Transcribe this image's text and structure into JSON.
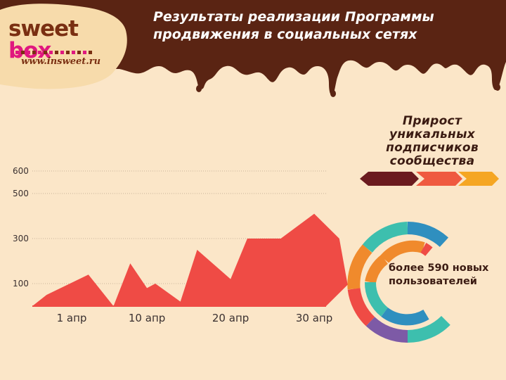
{
  "header": {
    "title": "Результаты реализации Программы продвижения в социальных сетях"
  },
  "logo": {
    "word1": "sweet",
    "word2": "box",
    "url": "www.insweet.ru"
  },
  "sidebar": {
    "title": "Прирост уникальных подписчиков сообщества",
    "ring_text": "более 590 новых пользователей"
  },
  "colors": {
    "chocolate": "#5a2413",
    "background": "#fbe6c8",
    "area": "#ef4b45",
    "arrow_dark": "#6b1b1f",
    "arrow_mid": "#ef5a40",
    "arrow_light": "#f5a623",
    "ring_teal": "#3dbfae",
    "ring_blue": "#2f8fbf",
    "ring_orange": "#f08a2c",
    "ring_red": "#ef4b45",
    "ring_purple": "#7d5aa6",
    "logo_pink": "#e0187f"
  },
  "chart_data": {
    "type": "area",
    "title": "",
    "xlabel": "",
    "ylabel": "",
    "yticks": [
      {
        "label": "600",
        "value": 600
      },
      {
        "label": "500",
        "value": 500
      },
      {
        "label": "300",
        "value": 300
      },
      {
        "label": "100",
        "value": 100
      }
    ],
    "xticks": [
      {
        "label": "1 апр",
        "value": 1
      },
      {
        "label": "10 апр",
        "value": 10
      },
      {
        "label": "20 апр",
        "value": 20
      },
      {
        "label": "30 апр",
        "value": 30
      }
    ],
    "series": [
      {
        "x": [
          -2,
          3,
          6,
          8,
          10,
          11,
          14,
          16,
          20,
          22,
          26,
          30,
          33,
          34
        ],
        "y": [
          50,
          140,
          0,
          190,
          80,
          100,
          20,
          250,
          120,
          300,
          300,
          410,
          300,
          95
        ]
      }
    ],
    "grid": true,
    "legend": "none"
  }
}
